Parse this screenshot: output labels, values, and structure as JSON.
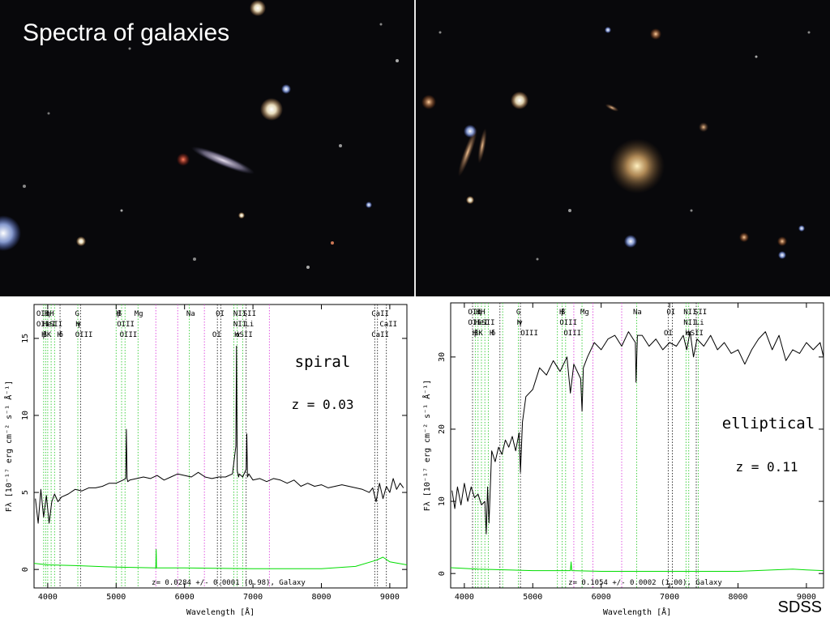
{
  "title": "Spectra of galaxies",
  "credit": "SDSS",
  "chart_data": [
    {
      "type": "line",
      "label": "spiral",
      "redshift_label": "z = 0.03",
      "fit_caption": "z= 0.0284 +/- 0.0001 (0.98), Galaxy",
      "xlabel": "Wavelength [Å]",
      "ylabel": "Fλ [10⁻¹⁷ erg cm⁻² s⁻¹ Å⁻¹]",
      "xlim": [
        3800,
        9250
      ],
      "ylim": [
        -1.2,
        17.2
      ],
      "xticks": [
        4000,
        5000,
        6000,
        7000,
        8000,
        9000
      ],
      "yticks": [
        0,
        5,
        10,
        15
      ],
      "grid": false,
      "series": [
        {
          "name": "",
          "color": "#000000",
          "x": [
            3820,
            3860,
            3900,
            3940,
            3980,
            4020,
            4060,
            4100,
            4150,
            4200,
            4300,
            4400,
            4500,
            4600,
            4700,
            4800,
            4900,
            5000,
            5100,
            5140,
            5150,
            5160,
            5170,
            5200,
            5300,
            5400,
            5500,
            5600,
            5700,
            5800,
            5900,
            6000,
            6100,
            6200,
            6300,
            6400,
            6500,
            6600,
            6700,
            6750,
            6760,
            6770,
            6790,
            6800,
            6850,
            6900,
            6910,
            6920,
            6940,
            7000,
            7100,
            7200,
            7300,
            7400,
            7500,
            7600,
            7700,
            7800,
            7900,
            8000,
            8100,
            8200,
            8300,
            8400,
            8500,
            8600,
            8700,
            8750,
            8800,
            8850,
            8900,
            8950,
            9000,
            9050,
            9100,
            9150,
            9200
          ],
          "y": [
            4.6,
            3.0,
            5.2,
            3.4,
            4.8,
            3.0,
            4.4,
            4.9,
            4.4,
            4.7,
            4.9,
            5.2,
            5.1,
            5.3,
            5.3,
            5.4,
            5.6,
            5.6,
            5.8,
            5.9,
            9.1,
            5.9,
            5.7,
            5.8,
            5.9,
            6.0,
            5.9,
            6.1,
            5.8,
            6.0,
            6.2,
            6.1,
            6.0,
            6.3,
            6.0,
            5.9,
            6.0,
            6.0,
            6.2,
            8.0,
            14.5,
            6.4,
            6.0,
            6.2,
            6.0,
            6.5,
            8.8,
            6.0,
            6.2,
            5.8,
            5.9,
            5.7,
            5.9,
            5.8,
            5.6,
            5.8,
            5.4,
            5.6,
            5.4,
            5.5,
            5.3,
            5.4,
            5.5,
            5.4,
            5.3,
            5.2,
            5.0,
            5.3,
            4.4,
            5.6,
            4.6,
            5.4,
            5.0,
            5.9,
            5.2,
            5.6,
            5.3
          ]
        },
        {
          "name": "",
          "color": "#00dd00",
          "x": [
            3800,
            4000,
            4400,
            5000,
            5580,
            5585,
            5590,
            6000,
            7000,
            8000,
            8500,
            8800,
            8900,
            9000,
            9250
          ],
          "y": [
            0.4,
            0.3,
            0.25,
            0.15,
            0.1,
            1.3,
            0.1,
            0.1,
            0.05,
            0.05,
            0.2,
            0.6,
            0.8,
            0.5,
            0.3
          ]
        }
      ],
      "line_markers": [
        {
          "x": 3940,
          "color": "green"
        },
        {
          "x": 3970,
          "color": "green"
        },
        {
          "x": 4000,
          "color": "green"
        },
        {
          "x": 4050,
          "color": "green"
        },
        {
          "x": 4100,
          "color": "green"
        },
        {
          "x": 4180,
          "color": "black"
        },
        {
          "x": 4440,
          "color": "green"
        },
        {
          "x": 4480,
          "color": "black"
        },
        {
          "x": 5000,
          "color": "green"
        },
        {
          "x": 5080,
          "color": "green"
        },
        {
          "x": 5130,
          "color": "green"
        },
        {
          "x": 5320,
          "color": "green"
        },
        {
          "x": 5580,
          "color": "magenta"
        },
        {
          "x": 5900,
          "color": "magenta"
        },
        {
          "x": 6070,
          "color": "green"
        },
        {
          "x": 6290,
          "color": "magenta"
        },
        {
          "x": 6480,
          "color": "black"
        },
        {
          "x": 6530,
          "color": "black"
        },
        {
          "x": 6720,
          "color": "green"
        },
        {
          "x": 6770,
          "color": "green"
        },
        {
          "x": 6850,
          "color": "green"
        },
        {
          "x": 6900,
          "color": "black"
        },
        {
          "x": 7240,
          "color": "magenta"
        },
        {
          "x": 8780,
          "color": "black"
        },
        {
          "x": 8820,
          "color": "black"
        },
        {
          "x": 8950,
          "color": "black"
        }
      ],
      "line_labels": [
        {
          "text": "OII",
          "x": 3930,
          "row": 0
        },
        {
          "text": "H",
          "x": 3985,
          "row": 0
        },
        {
          "text": "η",
          "x": 4005,
          "row": 0
        },
        {
          "text": "H",
          "x": 4060,
          "row": 0
        },
        {
          "text": "OII",
          "x": 3930,
          "row": 1
        },
        {
          "text": "HeI",
          "x": 4025,
          "row": 1
        },
        {
          "text": "SII",
          "x": 4120,
          "row": 1
        },
        {
          "text": "H",
          "x": 3940,
          "row": 2
        },
        {
          "text": "β",
          "x": 3960,
          "row": 2
        },
        {
          "text": "K",
          "x": 4020,
          "row": 2
        },
        {
          "text": "H",
          "x": 4170,
          "row": 2
        },
        {
          "text": "δ",
          "x": 4195,
          "row": 2
        },
        {
          "text": "G",
          "x": 4430,
          "row": 0
        },
        {
          "text": "H",
          "x": 4440,
          "row": 1
        },
        {
          "text": "γ",
          "x": 4455,
          "row": 1
        },
        {
          "text": "OIII",
          "x": 4530,
          "row": 2
        },
        {
          "text": "H",
          "x": 5030,
          "row": 0
        },
        {
          "text": "β",
          "x": 5050,
          "row": 0
        },
        {
          "text": "Mg",
          "x": 5330,
          "row": 0
        },
        {
          "text": "OIII",
          "x": 5140,
          "row": 1
        },
        {
          "text": "OIII",
          "x": 5180,
          "row": 2
        },
        {
          "text": "Na",
          "x": 6090,
          "row": 0
        },
        {
          "text": "OI",
          "x": 6520,
          "row": 0
        },
        {
          "text": "OI",
          "x": 6470,
          "row": 2
        },
        {
          "text": "NII",
          "x": 6810,
          "row": 0
        },
        {
          "text": "SII",
          "x": 6950,
          "row": 0
        },
        {
          "text": "NII",
          "x": 6810,
          "row": 1
        },
        {
          "text": "Li",
          "x": 6950,
          "row": 1
        },
        {
          "text": "H",
          "x": 6760,
          "row": 2
        },
        {
          "text": "α",
          "x": 6780,
          "row": 2
        },
        {
          "text": "SII",
          "x": 6900,
          "row": 2
        },
        {
          "text": "CaII",
          "x": 8860,
          "row": 0
        },
        {
          "text": "CaII",
          "x": 8980,
          "row": 1
        },
        {
          "text": "CaII",
          "x": 8860,
          "row": 2
        }
      ]
    },
    {
      "type": "line",
      "label": "elliptical",
      "redshift_label": "z = 0.11",
      "fit_caption": "z= 0.1054 +/- 0.0002 (1.00), Galaxy",
      "xlabel": "Wavelength [Å]",
      "ylabel": "Fλ [10⁻¹⁷ erg cm⁻² s⁻¹ Å⁻¹]",
      "xlim": [
        3800,
        9250
      ],
      "ylim": [
        -2.0,
        37.5
      ],
      "xticks": [
        4000,
        5000,
        6000,
        7000,
        8000,
        9000
      ],
      "yticks": [
        0,
        10,
        20,
        30
      ],
      "grid": false,
      "series": [
        {
          "name": "",
          "color": "#000000",
          "x": [
            3820,
            3860,
            3900,
            3950,
            4000,
            4050,
            4100,
            4150,
            4200,
            4250,
            4300,
            4320,
            4340,
            4360,
            4400,
            4450,
            4500,
            4550,
            4600,
            4650,
            4700,
            4750,
            4800,
            4820,
            4850,
            4900,
            5000,
            5100,
            5200,
            5300,
            5400,
            5500,
            5550,
            5600,
            5700,
            5720,
            5740,
            5800,
            5900,
            6000,
            6100,
            6200,
            6300,
            6400,
            6500,
            6510,
            6530,
            6600,
            6700,
            6800,
            6900,
            7000,
            7100,
            7200,
            7250,
            7300,
            7350,
            7400,
            7500,
            7600,
            7700,
            7800,
            7900,
            8000,
            8100,
            8200,
            8300,
            8400,
            8500,
            8600,
            8700,
            8800,
            8900,
            9000,
            9100,
            9200,
            9250
          ],
          "y": [
            11.5,
            9.0,
            12.0,
            9.5,
            12.5,
            10.0,
            12.0,
            10.5,
            11.0,
            9.5,
            10.0,
            5.5,
            12.0,
            7.0,
            17.0,
            15.5,
            17.5,
            16.5,
            18.5,
            17.5,
            19.0,
            17.0,
            19.5,
            14.0,
            21.0,
            24.5,
            25.5,
            28.5,
            27.5,
            29.5,
            28.0,
            30.0,
            25.0,
            29.0,
            27.0,
            22.5,
            28.5,
            30.0,
            32.0,
            31.0,
            32.5,
            33.0,
            31.5,
            33.5,
            32.0,
            26.5,
            33.0,
            33.0,
            31.5,
            32.5,
            31.0,
            32.0,
            31.5,
            33.0,
            31.0,
            33.5,
            30.0,
            32.5,
            31.5,
            33.0,
            31.0,
            32.0,
            30.5,
            31.0,
            29.0,
            31.0,
            32.5,
            33.5,
            31.0,
            33.0,
            29.5,
            31.0,
            30.5,
            32.0,
            31.0,
            32.0,
            30.0
          ]
        },
        {
          "name": "",
          "color": "#00dd00",
          "x": [
            3800,
            4200,
            5000,
            5550,
            5560,
            5570,
            6000,
            7000,
            8000,
            8800,
            9000,
            9250
          ],
          "y": [
            0.8,
            0.6,
            0.4,
            0.4,
            1.6,
            0.4,
            0.3,
            0.3,
            0.3,
            0.6,
            0.5,
            0.4
          ]
        }
      ],
      "line_markers": [
        {
          "x": 4120,
          "color": "black"
        },
        {
          "x": 4160,
          "color": "green"
        },
        {
          "x": 4200,
          "color": "green"
        },
        {
          "x": 4250,
          "color": "green"
        },
        {
          "x": 4300,
          "color": "green"
        },
        {
          "x": 4350,
          "color": "green"
        },
        {
          "x": 4520,
          "color": "black"
        },
        {
          "x": 4560,
          "color": "green"
        },
        {
          "x": 4790,
          "color": "green"
        },
        {
          "x": 4820,
          "color": "black"
        },
        {
          "x": 5360,
          "color": "green"
        },
        {
          "x": 5430,
          "color": "green"
        },
        {
          "x": 5480,
          "color": "green"
        },
        {
          "x": 5600,
          "color": "magenta"
        },
        {
          "x": 5720,
          "color": "green"
        },
        {
          "x": 5880,
          "color": "magenta"
        },
        {
          "x": 6300,
          "color": "magenta"
        },
        {
          "x": 6520,
          "color": "green"
        },
        {
          "x": 6980,
          "color": "black"
        },
        {
          "x": 7040,
          "color": "black"
        },
        {
          "x": 7240,
          "color": "green"
        },
        {
          "x": 7280,
          "color": "green"
        },
        {
          "x": 7390,
          "color": "black"
        },
        {
          "x": 7420,
          "color": "green"
        }
      ],
      "line_labels": [
        {
          "text": "OII",
          "x": 4150,
          "row": 0
        },
        {
          "text": "H",
          "x": 4200,
          "row": 0
        },
        {
          "text": "η",
          "x": 4220,
          "row": 0
        },
        {
          "text": "H",
          "x": 4270,
          "row": 0
        },
        {
          "text": "OII",
          "x": 4150,
          "row": 1
        },
        {
          "text": "HeI",
          "x": 4250,
          "row": 1
        },
        {
          "text": "SII",
          "x": 4350,
          "row": 1
        },
        {
          "text": "H",
          "x": 4150,
          "row": 2
        },
        {
          "text": "β",
          "x": 4175,
          "row": 2
        },
        {
          "text": "K",
          "x": 4240,
          "row": 2
        },
        {
          "text": "H",
          "x": 4400,
          "row": 2
        },
        {
          "text": "δ",
          "x": 4425,
          "row": 2
        },
        {
          "text": "G",
          "x": 4790,
          "row": 0
        },
        {
          "text": "H",
          "x": 4800,
          "row": 1
        },
        {
          "text": "γ",
          "x": 4820,
          "row": 1
        },
        {
          "text": "OIII",
          "x": 4950,
          "row": 2
        },
        {
          "text": "H",
          "x": 5420,
          "row": 0
        },
        {
          "text": "β",
          "x": 5445,
          "row": 0
        },
        {
          "text": "Mg",
          "x": 5760,
          "row": 0
        },
        {
          "text": "OIII",
          "x": 5520,
          "row": 1
        },
        {
          "text": "OIII",
          "x": 5580,
          "row": 2
        },
        {
          "text": "Na",
          "x": 6530,
          "row": 0
        },
        {
          "text": "OI",
          "x": 7020,
          "row": 0
        },
        {
          "text": "OI",
          "x": 6980,
          "row": 2
        },
        {
          "text": "NII",
          "x": 7300,
          "row": 0
        },
        {
          "text": "SII",
          "x": 7450,
          "row": 0
        },
        {
          "text": "NII",
          "x": 7300,
          "row": 1
        },
        {
          "text": "Li",
          "x": 7440,
          "row": 1
        },
        {
          "text": "H",
          "x": 7260,
          "row": 2
        },
        {
          "text": "α",
          "x": 7280,
          "row": 2
        },
        {
          "text": "SII",
          "x": 7400,
          "row": 2
        }
      ]
    }
  ]
}
